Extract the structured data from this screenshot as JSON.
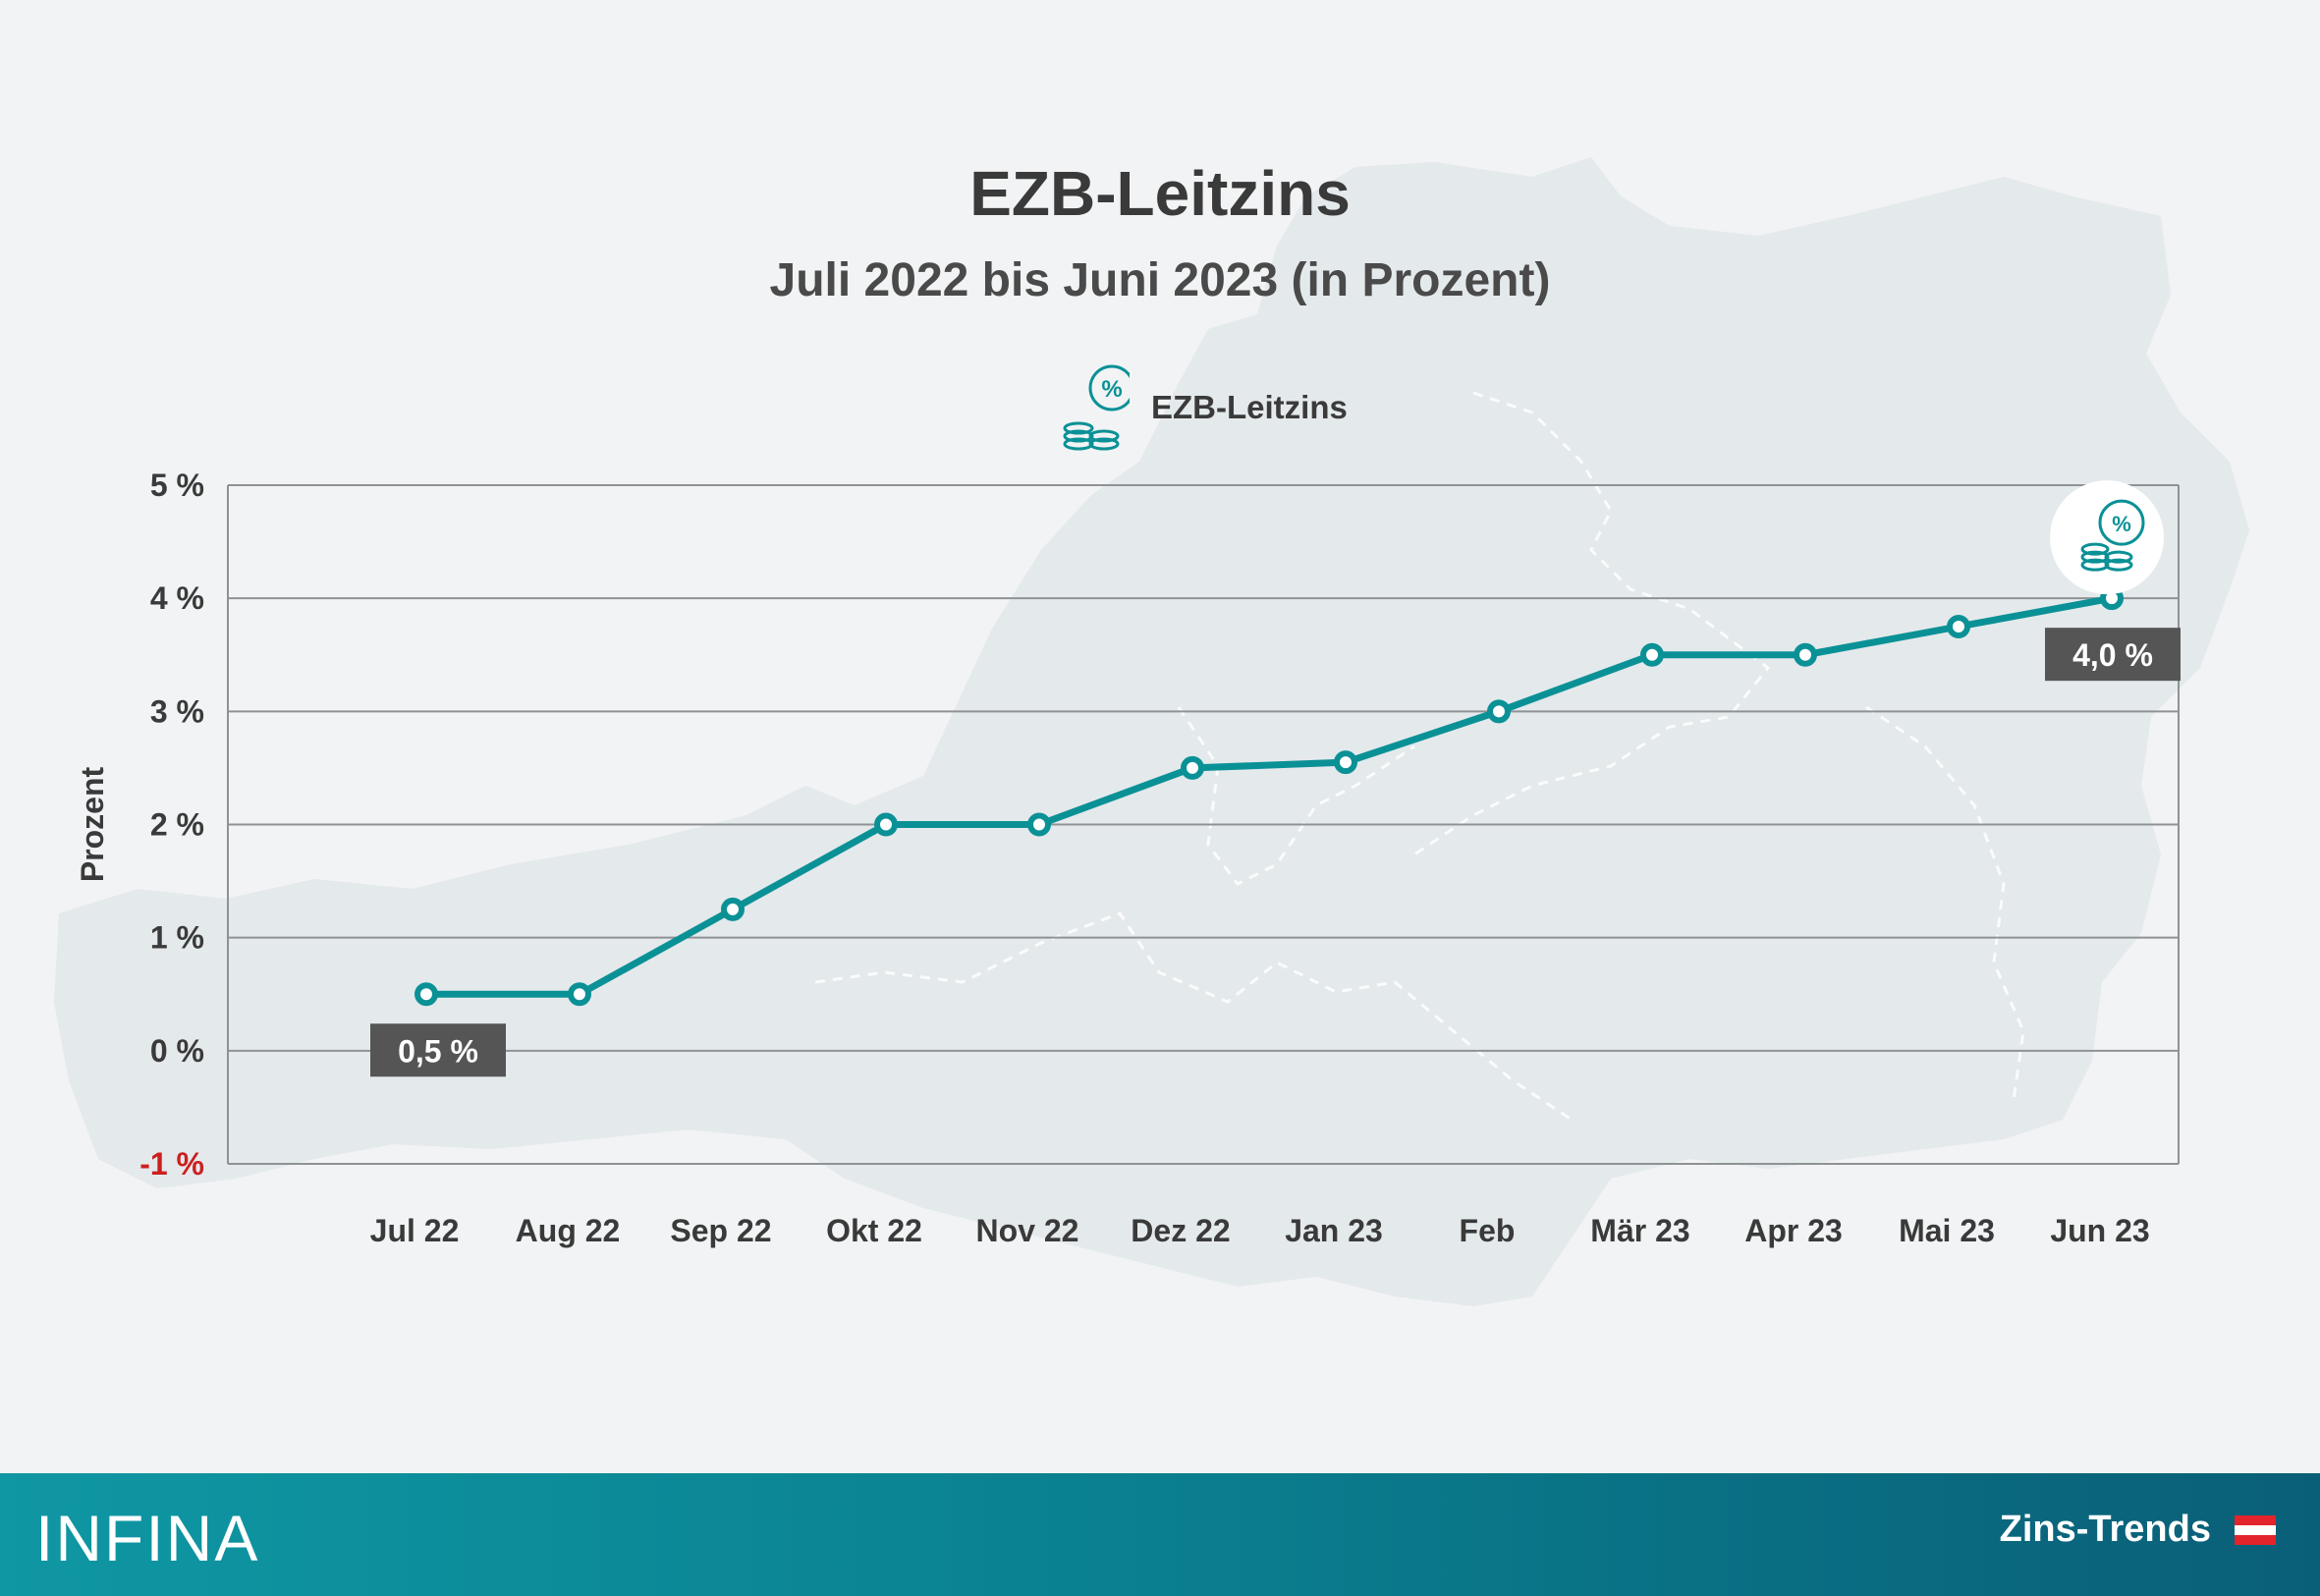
{
  "header": {
    "title": "EZB-Leitzins",
    "subtitle": "Juli 2022 bis Juni 2023 (in Prozent)"
  },
  "legend": {
    "label": "EZB-Leitzins",
    "icon": "percent-coins-icon"
  },
  "chart_data": {
    "type": "line",
    "categories": [
      "Jul 22",
      "Aug 22",
      "Sep 22",
      "Okt 22",
      "Nov 22",
      "Dez 22",
      "Jan 23",
      "Feb",
      "Mär 23",
      "Apr 23",
      "Mai 23",
      "Jun 23"
    ],
    "series": [
      {
        "name": "EZB-Leitzins",
        "values": [
          0.5,
          0.5,
          1.25,
          2.0,
          2.0,
          2.5,
          2.55,
          3.0,
          3.5,
          3.5,
          3.75,
          4.0
        ]
      }
    ],
    "ylabel": "Prozent",
    "ylim": [
      -1,
      5
    ],
    "yticks": [
      {
        "value": 5,
        "label": "5 %"
      },
      {
        "value": 4,
        "label": "4 %"
      },
      {
        "value": 3,
        "label": "3 %"
      },
      {
        "value": 2,
        "label": "2 %"
      },
      {
        "value": 1,
        "label": "1 %"
      },
      {
        "value": 0,
        "label": "0 %"
      },
      {
        "value": -1,
        "label": "-1 %"
      }
    ],
    "annotations": [
      {
        "index": 0,
        "label": "0,5 %",
        "position": "below"
      },
      {
        "index": 11,
        "label": "4,0 %",
        "position": "below",
        "icon": "percent-coins-icon"
      }
    ],
    "grid": true,
    "legend_position": "top-center"
  },
  "colors": {
    "line": "#0a9196",
    "grid": "#8f9295",
    "tick_text": "#3a3a3a",
    "negative_tick": "#cc1f1f",
    "label_box": "#555555",
    "footer_start": "#0f97a3",
    "footer_end": "#0a5f78"
  },
  "footer": {
    "logo": "INFINA",
    "section": "Zins-Trends",
    "flag_icon": "austria-flag-icon"
  }
}
